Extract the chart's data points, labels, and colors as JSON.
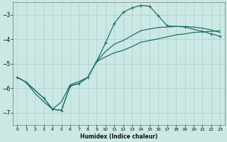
{
  "background_color": "#cce8e5",
  "grid_color": "#aaceca",
  "line_color": "#1e7068",
  "xlabel": "Humidex (Indice chaleur)",
  "xlim": [
    -0.5,
    23.5
  ],
  "ylim": [
    -7.5,
    -2.5
  ],
  "yticks": [
    -7,
    -6,
    -5,
    -4,
    -3
  ],
  "xticks": [
    0,
    1,
    2,
    3,
    4,
    5,
    6,
    7,
    8,
    9,
    10,
    11,
    12,
    13,
    14,
    15,
    16,
    17,
    18,
    19,
    20,
    21,
    22,
    23
  ],
  "line1_x": [
    0,
    1,
    3,
    4,
    5,
    6,
    7,
    8,
    9,
    10,
    11,
    12,
    13,
    14,
    15,
    16,
    17,
    19,
    21,
    22,
    23
  ],
  "line1_y": [
    -5.55,
    -5.75,
    -6.4,
    -6.85,
    -6.9,
    -5.9,
    -5.8,
    -5.55,
    -4.9,
    -4.15,
    -3.35,
    -2.9,
    -2.72,
    -2.62,
    -2.65,
    -3.05,
    -3.45,
    -3.5,
    -3.68,
    -3.78,
    -3.88
  ],
  "line2_x": [
    0,
    1,
    3,
    4,
    5,
    6,
    7,
    8,
    9,
    10,
    11,
    12,
    13,
    14,
    15,
    16,
    17,
    18,
    19,
    20,
    21,
    22,
    23
  ],
  "line2_y": [
    -5.55,
    -5.75,
    -6.4,
    -6.85,
    -6.9,
    -5.9,
    -5.8,
    -5.55,
    -4.9,
    -4.5,
    -4.2,
    -4.05,
    -3.85,
    -3.65,
    -3.58,
    -3.52,
    -3.5,
    -3.48,
    -3.48,
    -3.5,
    -3.55,
    -3.62,
    -3.72
  ],
  "line3_x": [
    0,
    1,
    2,
    3,
    4,
    5,
    6,
    7,
    8,
    9,
    10,
    11,
    12,
    13,
    14,
    15,
    16,
    17,
    18,
    19,
    20,
    21,
    22,
    23
  ],
  "line3_y": [
    -5.55,
    -5.75,
    -6.2,
    -6.55,
    -6.85,
    -6.55,
    -5.85,
    -5.72,
    -5.55,
    -4.9,
    -4.72,
    -4.55,
    -4.45,
    -4.3,
    -4.12,
    -4.05,
    -3.98,
    -3.9,
    -3.82,
    -3.78,
    -3.72,
    -3.7,
    -3.68,
    -3.65
  ],
  "marker1_x": [
    0,
    1,
    3,
    4,
    5,
    6,
    7,
    8,
    9,
    10,
    11,
    12,
    13,
    14,
    15,
    16,
    17,
    19,
    21,
    22,
    23
  ],
  "marker1_y": [
    -5.55,
    -5.75,
    -6.4,
    -6.85,
    -6.9,
    -5.9,
    -5.8,
    -5.55,
    -4.9,
    -4.15,
    -3.35,
    -2.9,
    -2.72,
    -2.62,
    -2.65,
    -3.05,
    -3.45,
    -3.5,
    -3.68,
    -3.78,
    -3.88
  ]
}
